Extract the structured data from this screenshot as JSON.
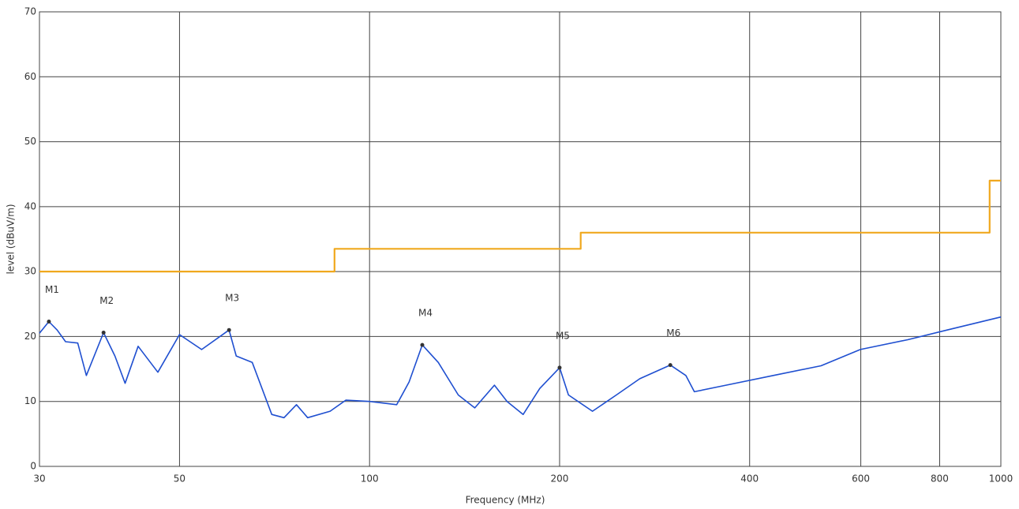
{
  "chart_data": {
    "type": "line",
    "xscale": "log",
    "xlabel": "Frequency (MHz)",
    "ylabel": "level (dBuV/m)",
    "xlim": [
      30,
      1000
    ],
    "xticks": [
      30,
      50,
      100,
      200,
      400,
      600,
      800,
      1000
    ],
    "ylim": [
      0,
      70
    ],
    "yticks": [
      0,
      10,
      20,
      30,
      40,
      50,
      60,
      70
    ],
    "grid": true,
    "series": [
      {
        "color": "#f0a81e",
        "x": [
          30,
          88,
          88,
          216,
          216,
          960,
          960,
          1000
        ],
        "values": [
          30,
          30,
          33.5,
          33.5,
          36,
          36,
          44,
          44
        ]
      },
      {
        "color": "#1f4fd0",
        "x": [
          30,
          31.05,
          32,
          33,
          34.5,
          35.6,
          37.9,
          39.5,
          41,
          43,
          46.2,
          50,
          54.2,
          59.9,
          61.5,
          65.2,
          70,
          73.2,
          76.6,
          79.8,
          86.6,
          91.7,
          100,
          110.4,
          115.5,
          121.2,
          128.5,
          138.2,
          146.8,
          157.7,
          165.1,
          175.1,
          186,
          200,
          206.6,
          225.5,
          246,
          268,
          299.5,
          317,
          327,
          367,
          436,
          519,
          599,
          712,
          822,
          1000
        ],
        "values": [
          20.5,
          22.3,
          21,
          19.2,
          19,
          14,
          20.6,
          17,
          12.8,
          18.5,
          14.5,
          20.3,
          18,
          21,
          17,
          16,
          8,
          7.5,
          9.5,
          7.5,
          8.5,
          10.2,
          10,
          9.5,
          13,
          18.7,
          16,
          11,
          9,
          12.5,
          10,
          8,
          12,
          15.2,
          11,
          8.5,
          11,
          13.5,
          15.6,
          14,
          11.5,
          12.5,
          14,
          15.5,
          18,
          19.5,
          21,
          23
        ]
      }
    ],
    "markers": [
      {
        "label": "M1",
        "x": 31.05,
        "y": 22.3
      },
      {
        "label": "M2",
        "x": 37.9,
        "y": 20.6
      },
      {
        "label": "M3",
        "x": 59.9,
        "y": 21
      },
      {
        "label": "M4",
        "x": 121.2,
        "y": 18.7
      },
      {
        "label": "M5",
        "x": 200,
        "y": 15.2
      },
      {
        "label": "M6",
        "x": 299.5,
        "y": 15.6
      }
    ]
  }
}
